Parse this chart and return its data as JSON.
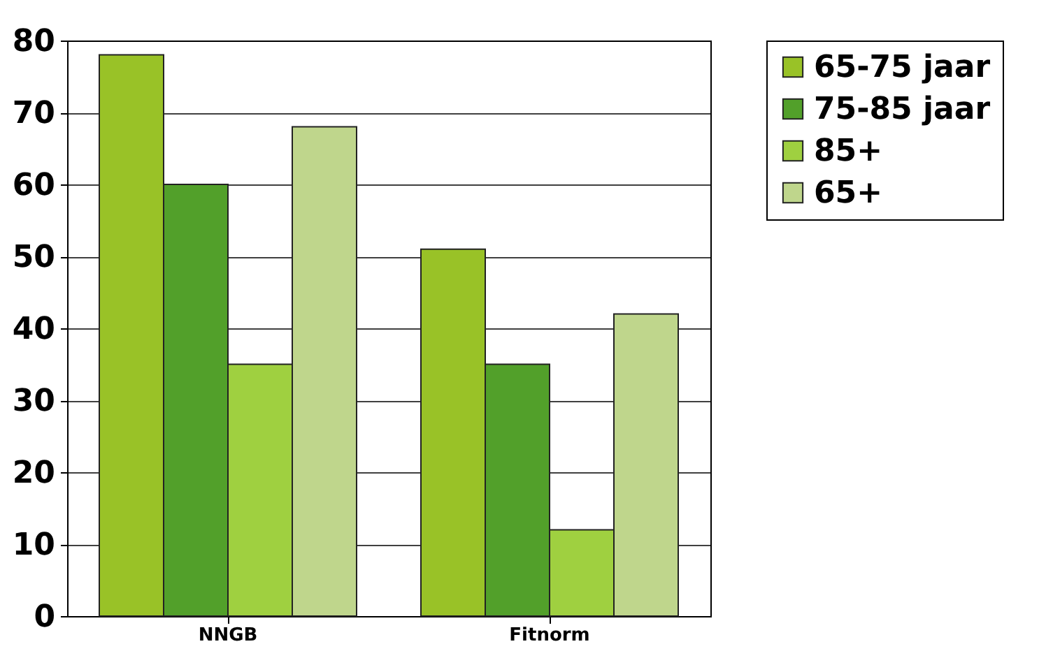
{
  "chart_data": {
    "type": "bar",
    "categories": [
      "NNGB",
      "Fitnorm"
    ],
    "series": [
      {
        "name": "65-75 jaar",
        "color": "#99c227",
        "values": [
          78,
          51
        ]
      },
      {
        "name": "75-85 jaar",
        "color": "#52a02a",
        "values": [
          60,
          35
        ]
      },
      {
        "name": "85+",
        "color": "#9fd040",
        "values": [
          35,
          12
        ]
      },
      {
        "name": "65+",
        "color": "#bfd68c",
        "values": [
          68,
          42
        ]
      }
    ],
    "ylim": [
      0,
      80
    ],
    "yticks": [
      0,
      10,
      20,
      30,
      40,
      50,
      60,
      70,
      80
    ],
    "grid": "y",
    "legend": "right"
  }
}
